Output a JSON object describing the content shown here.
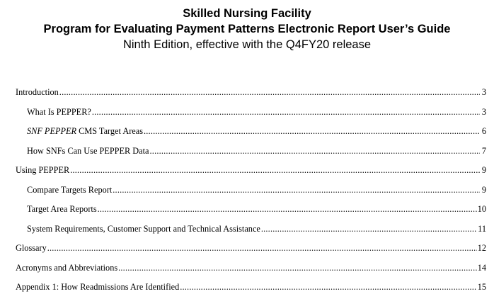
{
  "header": {
    "title_line1": "Skilled Nursing Facility",
    "title_line2": "Program for Evaluating Payment Patterns Electronic Report User’s Guide",
    "subtitle": "Ninth Edition, effective with the Q4FY20 release"
  },
  "toc": {
    "entries": [
      {
        "label": "Introduction",
        "page": "3",
        "level": 1
      },
      {
        "label": "What Is PEPPER?",
        "page": "3",
        "level": 2
      },
      {
        "label_italic": "SNF PEPPER",
        "label": " CMS Target Areas",
        "page": "6",
        "level": 2
      },
      {
        "label": "How SNFs Can Use PEPPER Data",
        "page": "7",
        "level": 2
      },
      {
        "label": "Using PEPPER",
        "page": "9",
        "level": 1
      },
      {
        "label": "Compare Targets Report",
        "page": "9",
        "level": 2
      },
      {
        "label": "Target Area Reports",
        "page": "10",
        "level": 2
      },
      {
        "label": "System Requirements, Customer Support and Technical Assistance",
        "page": "11",
        "level": 2
      },
      {
        "label": "Glossary",
        "page": "12",
        "level": 1
      },
      {
        "label": "Acronyms and Abbreviations",
        "page": "14",
        "level": 1
      },
      {
        "label": "Appendix 1: How Readmissions Are Identified",
        "page": "15",
        "level": 1
      }
    ]
  }
}
